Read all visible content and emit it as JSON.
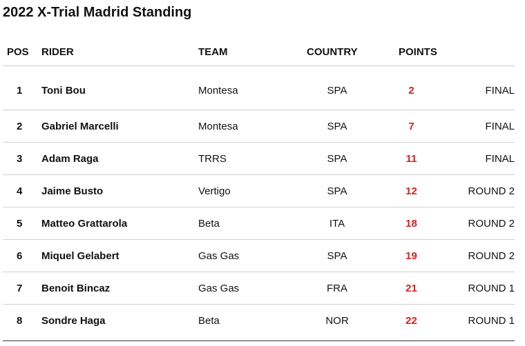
{
  "page": {
    "title": "2022 X-Trial Madrid Standing"
  },
  "table": {
    "headers": {
      "pos": "POS",
      "rider": "RIDER",
      "team": "TEAM",
      "country": "COUNTRY",
      "points": "POINTS",
      "status": ""
    },
    "rows": [
      {
        "pos": "1",
        "rider": "Toni Bou",
        "team": "Montesa",
        "country": "SPA",
        "points": "2",
        "status": "FINAL"
      },
      {
        "pos": "2",
        "rider": "Gabriel Marcelli",
        "team": "Montesa",
        "country": "SPA",
        "points": "7",
        "status": "FINAL"
      },
      {
        "pos": "3",
        "rider": "Adam Raga",
        "team": "TRRS",
        "country": "SPA",
        "points": "11",
        "status": "FINAL"
      },
      {
        "pos": "4",
        "rider": "Jaime Busto",
        "team": "Vertigo",
        "country": "SPA",
        "points": "12",
        "status": "ROUND 2"
      },
      {
        "pos": "5",
        "rider": "Matteo Grattarola",
        "team": "Beta",
        "country": "ITA",
        "points": "18",
        "status": "ROUND 2"
      },
      {
        "pos": "6",
        "rider": "Miquel Gelabert",
        "team": "Gas Gas",
        "country": "SPA",
        "points": "19",
        "status": "ROUND 2"
      },
      {
        "pos": "7",
        "rider": "Benoit Bincaz",
        "team": "Gas Gas",
        "country": "FRA",
        "points": "21",
        "status": "ROUND 1"
      },
      {
        "pos": "8",
        "rider": "Sondre Haga",
        "team": "Beta",
        "country": "NOR",
        "points": "22",
        "status": "ROUND 1"
      }
    ]
  },
  "colors": {
    "points_text": "#e21c1c",
    "divider": "#d0d0d0",
    "text": "#111111"
  }
}
